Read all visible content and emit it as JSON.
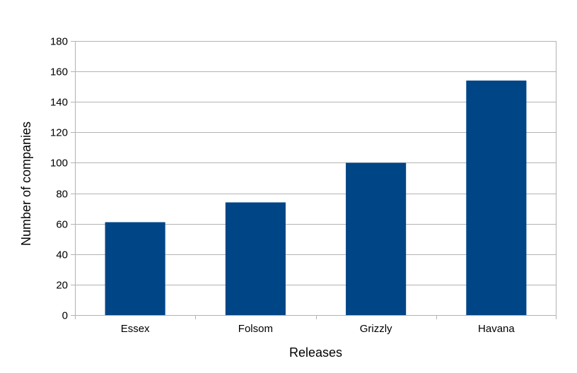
{
  "chart_data": {
    "type": "bar",
    "title": "",
    "xlabel": "Releases",
    "ylabel": "Number of companies",
    "categories": [
      "Essex",
      "Folsom",
      "Grizzly",
      "Havana"
    ],
    "values": [
      61,
      74,
      100,
      154
    ],
    "ylim": [
      0,
      180
    ],
    "yticks": [
      0,
      20,
      40,
      60,
      80,
      100,
      120,
      140,
      160,
      180
    ],
    "grid": true,
    "legend": "none",
    "bar_color": "#004586",
    "grid_color": "#b3b3b3"
  }
}
